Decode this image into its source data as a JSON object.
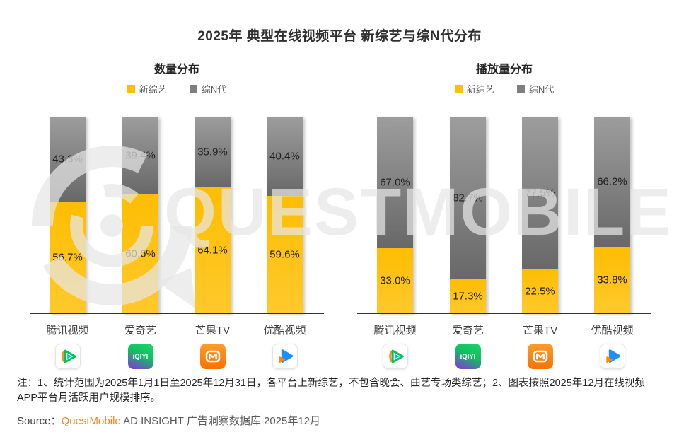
{
  "title": "2025年 典型在线视频平台 新综艺与综N代分布",
  "watermark": {
    "text": "QUESTMOBILE"
  },
  "chart_data": [
    {
      "type": "bar",
      "stacked": true,
      "title": "数量分布",
      "unit": "%",
      "ylim": [
        0,
        100
      ],
      "legend_position": "top",
      "categories": [
        "腾讯视频",
        "爱奇艺",
        "芒果TV",
        "优酷视频"
      ],
      "series": [
        {
          "name": "新综艺",
          "color": "#FFC000",
          "values": [
            56.7,
            60.6,
            64.1,
            59.6
          ]
        },
        {
          "name": "综N代",
          "color": "#808080",
          "values": [
            43.3,
            39.4,
            35.9,
            40.4
          ]
        }
      ]
    },
    {
      "type": "bar",
      "stacked": true,
      "title": "播放量分布",
      "unit": "%",
      "ylim": [
        0,
        100
      ],
      "legend_position": "top",
      "categories": [
        "腾讯视频",
        "爱奇艺",
        "芒果TV",
        "优酷视频"
      ],
      "series": [
        {
          "name": "新综艺",
          "color": "#FFC000",
          "values": [
            33.0,
            17.3,
            22.5,
            33.8
          ]
        },
        {
          "name": "综N代",
          "color": "#808080",
          "values": [
            67.0,
            82.7,
            77.5,
            66.2
          ]
        }
      ]
    }
  ],
  "platforms": [
    {
      "name": "腾讯视频",
      "icon": "tencent-video-icon",
      "icon_text": ""
    },
    {
      "name": "爱奇艺",
      "icon": "iqiyi-icon",
      "icon_text": "iQIYI"
    },
    {
      "name": "芒果TV",
      "icon": "mango-tv-icon",
      "icon_text": "M"
    },
    {
      "name": "优酷视频",
      "icon": "youku-icon",
      "icon_text": ""
    }
  ],
  "note": "注：1、统计范围为2025年1月1日至2025年12月31日，各平台上新综艺，不包含晚会、曲艺专场类综艺；2、图表按照2025年12月在线视频APP平台月活跃用户规模排序。",
  "source": {
    "prefix": "Source：",
    "brand": "QuestMobile",
    "rest": " AD INSIGHT 广告洞察数据库 2025年12月"
  },
  "colors": {
    "new_variety": "#FFC000",
    "returning_variety": "#808080",
    "brand_orange": "#F5831F"
  }
}
